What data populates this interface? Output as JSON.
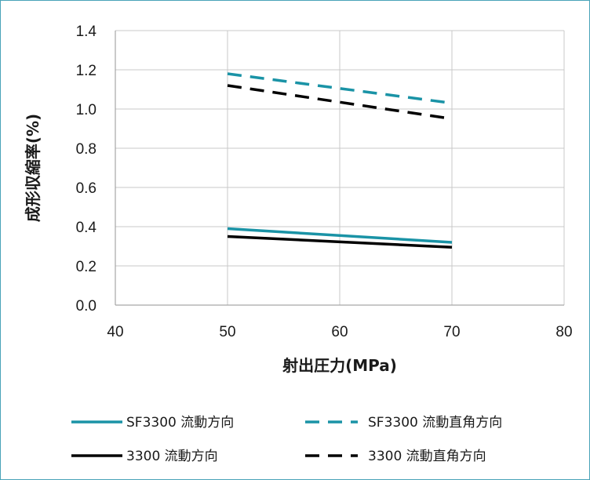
{
  "chart_data": {
    "type": "line",
    "xlabel": "射出圧力(MPa)",
    "ylabel": "成形収縮率(%)",
    "xlim": [
      40,
      80
    ],
    "ylim": [
      0,
      1.4
    ],
    "x_ticks": [
      "40",
      "50",
      "60",
      "70",
      "80"
    ],
    "y_ticks": [
      "0.0",
      "0.2",
      "0.4",
      "0.6",
      "0.8",
      "1.0",
      "1.2",
      "1.4"
    ],
    "grid": true,
    "legend_position": "bottom",
    "series": [
      {
        "name": "SF3300 流動方向",
        "x": [
          50,
          70
        ],
        "values": [
          0.39,
          0.32
        ],
        "color": "#1a93a6",
        "dash": "solid"
      },
      {
        "name": "SF3300 流動直角方向",
        "x": [
          50,
          70
        ],
        "values": [
          1.18,
          1.03
        ],
        "color": "#1a93a6",
        "dash": "dashed"
      },
      {
        "name": "3300 流動方向",
        "x": [
          50,
          70
        ],
        "values": [
          0.35,
          0.295
        ],
        "color": "#000000",
        "dash": "solid"
      },
      {
        "name": "3300 流動直角方向",
        "x": [
          50,
          70
        ],
        "values": [
          1.12,
          0.95
        ],
        "color": "#000000",
        "dash": "dashed"
      }
    ]
  }
}
